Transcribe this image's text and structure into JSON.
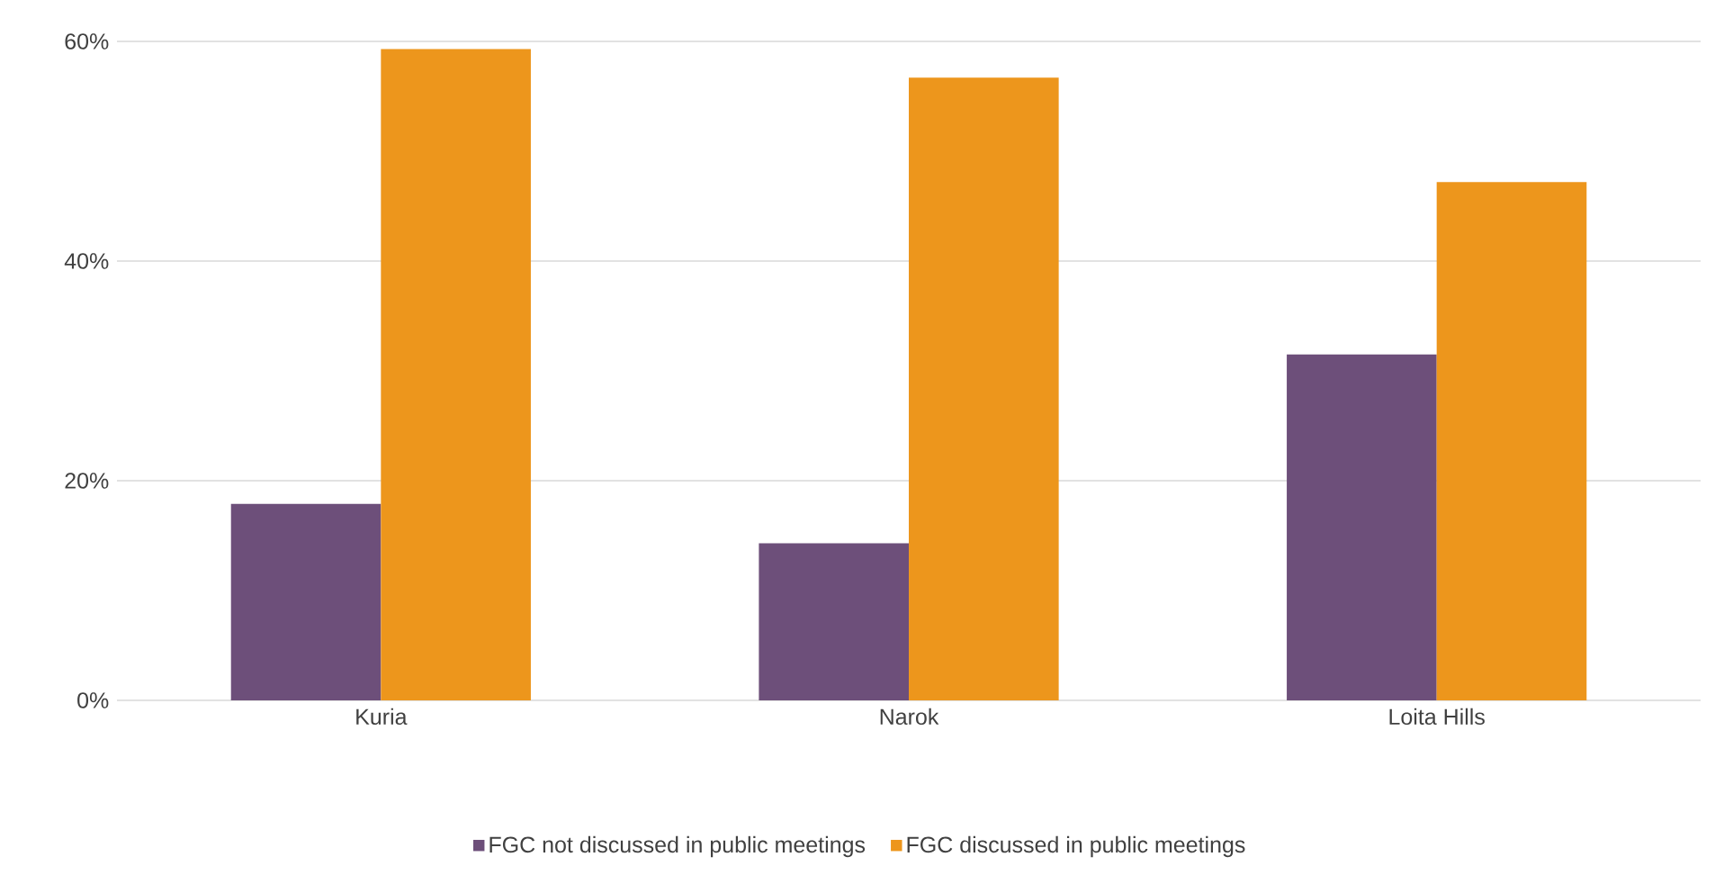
{
  "chart_data": {
    "type": "bar",
    "categories": [
      "Kuria",
      "Narok",
      "Loita Hills"
    ],
    "series": [
      {
        "name": "FGC not discussed in public meetings",
        "color": "#6d4f7a",
        "values": [
          17.9,
          14.3,
          31.5
        ]
      },
      {
        "name": "FGC discussed in public meetings",
        "color": "#ed961c",
        "values": [
          59.3,
          56.7,
          47.2
        ]
      }
    ],
    "ylim": [
      0,
      60
    ],
    "yticks": [
      {
        "value": 0,
        "label": "0%"
      },
      {
        "value": 20,
        "label": "20%"
      },
      {
        "value": 40,
        "label": "40%"
      },
      {
        "value": 60,
        "label": "60%"
      }
    ],
    "grid": "y",
    "legend": "bottom"
  }
}
